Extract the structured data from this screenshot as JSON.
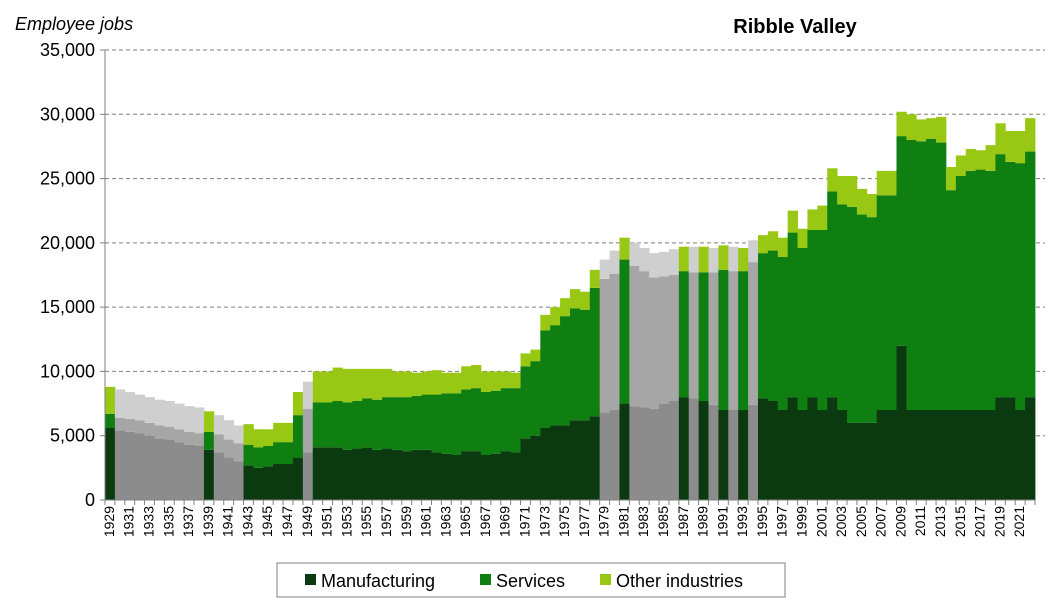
{
  "chart_data": {
    "type": "bar",
    "stacked": true,
    "title": "Ribble Valley",
    "ylabel": "Employee jobs",
    "xlabel": "",
    "ylim": [
      0,
      35000
    ],
    "yticks": [
      "0",
      "5,000",
      "10,000",
      "15,000",
      "20,000",
      "25,000",
      "30,000",
      "35,000"
    ],
    "grid": "horizontal-dashed",
    "legend_position": "bottom",
    "colors": {
      "manufacturing": "#0c3a10",
      "services": "#0e7f10",
      "other": "#99c814",
      "est_manufacturing": "#8c8c8c",
      "est_services": "#a6a6a6",
      "est_other": "#cfcfcf"
    },
    "legend": [
      "Manufacturing",
      "Services",
      "Other industries"
    ],
    "estimated_years_note": "grey bars are years without industry breakdown",
    "x": [
      1929,
      1930,
      1931,
      1932,
      1933,
      1934,
      1935,
      1936,
      1937,
      1938,
      1939,
      1940,
      1941,
      1942,
      1943,
      1944,
      1945,
      1946,
      1947,
      1948,
      1949,
      1950,
      1951,
      1952,
      1953,
      1954,
      1955,
      1956,
      1957,
      1958,
      1959,
      1960,
      1961,
      1962,
      1963,
      1964,
      1965,
      1966,
      1967,
      1968,
      1969,
      1970,
      1971,
      1972,
      1973,
      1974,
      1975,
      1976,
      1977,
      1978,
      1979,
      1980,
      1981,
      1982,
      1983,
      1984,
      1985,
      1986,
      1987,
      1988,
      1989,
      1990,
      1991,
      1992,
      1993,
      1994,
      1995,
      1996,
      1997,
      1998,
      1999,
      2000,
      2001,
      2002,
      2003,
      2004,
      2005,
      2006,
      2007,
      2008,
      2009,
      2010,
      2011,
      2012,
      2013,
      2014,
      2015,
      2016,
      2017,
      2018,
      2019,
      2020,
      2021,
      2022
    ],
    "estimated": [
      false,
      true,
      true,
      true,
      true,
      true,
      true,
      true,
      true,
      true,
      false,
      true,
      true,
      true,
      false,
      false,
      false,
      false,
      false,
      false,
      true,
      false,
      false,
      false,
      false,
      false,
      false,
      false,
      false,
      false,
      false,
      false,
      false,
      false,
      false,
      false,
      false,
      false,
      false,
      false,
      false,
      false,
      false,
      false,
      false,
      false,
      false,
      false,
      false,
      false,
      true,
      true,
      false,
      true,
      true,
      true,
      true,
      true,
      false,
      true,
      false,
      true,
      false,
      true,
      false,
      true,
      false,
      false,
      false,
      false,
      false,
      false,
      false,
      false,
      false,
      false,
      false,
      false,
      false,
      false,
      false,
      false,
      false,
      false,
      false,
      false,
      false,
      false,
      false,
      false,
      false,
      false,
      false,
      false
    ],
    "series": [
      {
        "name": "Manufacturing",
        "values": [
          5600,
          5400,
          5300,
          5200,
          5000,
          4800,
          4700,
          4500,
          4300,
          4200,
          3900,
          3700,
          3300,
          3000,
          2700,
          2500,
          2600,
          2800,
          2800,
          3300,
          3700,
          4100,
          4100,
          4100,
          3900,
          4000,
          4100,
          3900,
          4000,
          3900,
          3800,
          3900,
          3900,
          3700,
          3600,
          3500,
          3800,
          3800,
          3500,
          3600,
          3800,
          3700,
          4800,
          5000,
          5600,
          5800,
          5800,
          6200,
          6200,
          6500,
          6800,
          7000,
          7500,
          7300,
          7200,
          7100,
          7500,
          7700,
          8000,
          7900,
          7700,
          7400,
          7000,
          7000,
          7000,
          7400,
          7900,
          7700,
          7000,
          8000,
          7000,
          8000,
          7000,
          8000,
          7000,
          6000,
          6000,
          6000,
          7000,
          7000,
          12000,
          7000,
          7000,
          7000,
          7000,
          7000,
          7000,
          7000,
          7000,
          7000,
          8000,
          8000,
          7000,
          8000
        ]
      },
      {
        "name": "Services",
        "values": [
          1100,
          1000,
          1000,
          1000,
          1000,
          1000,
          1000,
          1000,
          1000,
          1000,
          1400,
          1400,
          1400,
          1400,
          1600,
          1600,
          1600,
          1700,
          1700,
          3300,
          3400,
          3500,
          3500,
          3600,
          3700,
          3700,
          3800,
          3900,
          4000,
          4100,
          4200,
          4200,
          4300,
          4500,
          4700,
          4800,
          4800,
          4900,
          4900,
          4900,
          4900,
          5000,
          5600,
          5800,
          7600,
          7800,
          8500,
          8700,
          8600,
          10000,
          10400,
          10600,
          11200,
          10900,
          10600,
          10200,
          9900,
          9800,
          9800,
          9800,
          10000,
          10300,
          10900,
          10800,
          10800,
          11100,
          11300,
          11700,
          11900,
          12800,
          12600,
          13000,
          14000,
          16000,
          16000,
          16800,
          16200,
          16000,
          16700,
          16700,
          16300,
          21000,
          20900,
          21100,
          20800,
          17100,
          18200,
          18600,
          18700,
          18600,
          18900,
          18300,
          19200,
          19100
        ]
      },
      {
        "name": "Other industries",
        "values": [
          2100,
          2200,
          2100,
          2000,
          2000,
          2000,
          2000,
          2000,
          2000,
          2000,
          1600,
          1500,
          1500,
          1400,
          1600,
          1400,
          1300,
          1500,
          1500,
          1800,
          2100,
          2400,
          2400,
          2600,
          2600,
          2500,
          2300,
          2400,
          2200,
          2000,
          2000,
          1800,
          1800,
          1900,
          1600,
          1600,
          1800,
          1800,
          1600,
          1500,
          1300,
          1200,
          1000,
          900,
          1200,
          1400,
          1400,
          1500,
          1400,
          1400,
          1500,
          1800,
          1700,
          1800,
          1800,
          1900,
          1900,
          2000,
          1900,
          2000,
          2000,
          1900,
          1900,
          1900,
          1800,
          1700,
          1400,
          1500,
          1500,
          1700,
          1500,
          1600,
          1900,
          1800,
          2200,
          2400,
          2000,
          1800,
          1900,
          1900,
          1900,
          2000,
          1700,
          1600,
          2000,
          1800,
          1600,
          1700,
          1500,
          2000,
          2400,
          2400,
          2500,
          2600
        ]
      }
    ]
  }
}
